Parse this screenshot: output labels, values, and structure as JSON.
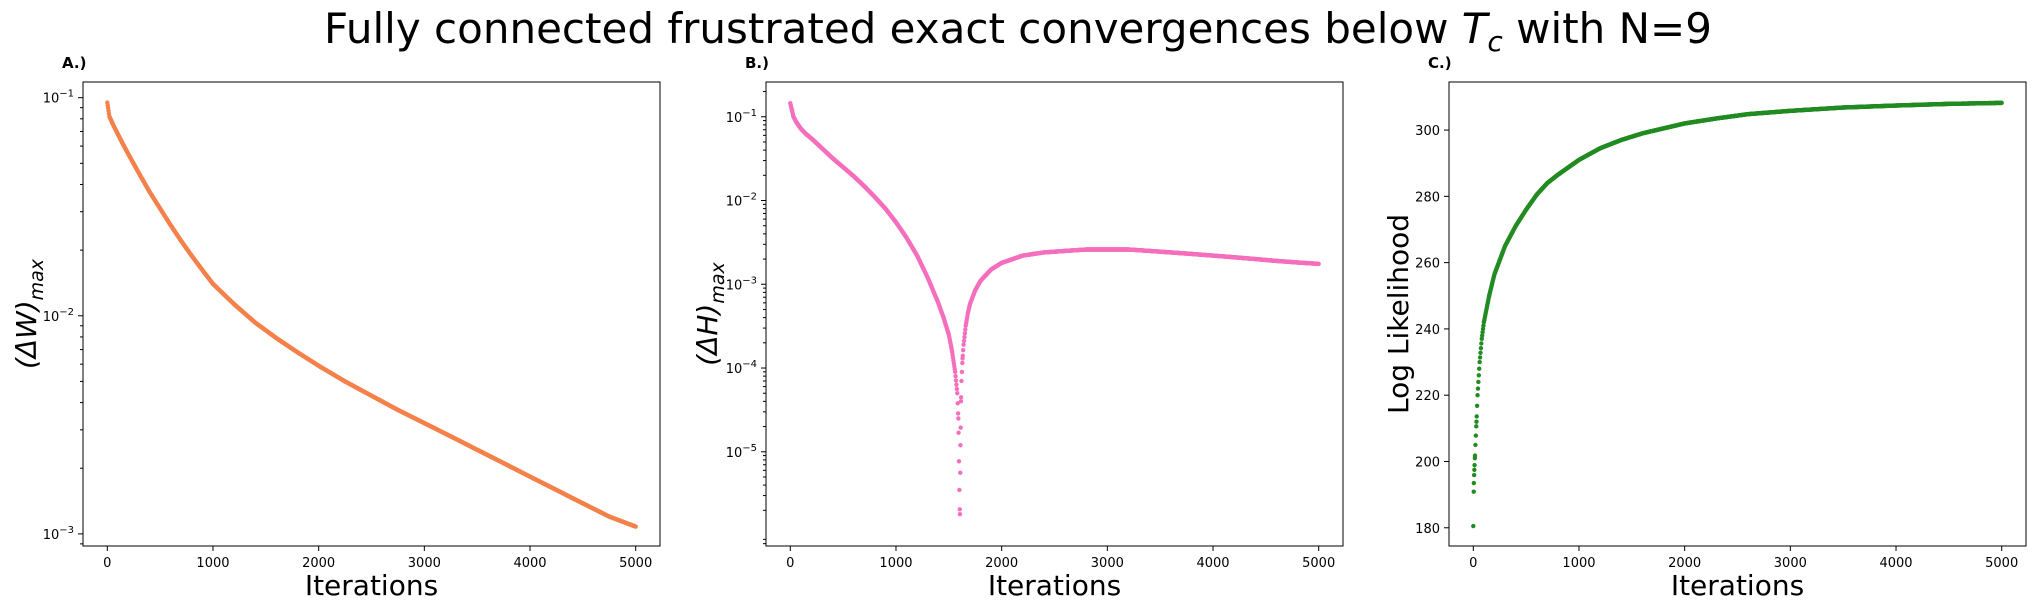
{
  "figure": {
    "title_main": "Fully connected frustrated exact convergences below ",
    "title_symbol": "T",
    "title_subscript": "c",
    "title_suffix": " with N=9"
  },
  "chart_data": [
    {
      "panel": "A.)",
      "type": "scatter",
      "color": "#f4814b",
      "xlabel": "Iterations",
      "ylabel_symbol": "(ΔW)",
      "ylabel_subscript": "max",
      "yscale": "log",
      "xlim": [
        -230,
        5230
      ],
      "ylim": [
        0.00088,
        0.118
      ],
      "xticks": [
        0,
        1000,
        2000,
        3000,
        4000,
        5000
      ],
      "xtick_labels": [
        "0",
        "1000",
        "2000",
        "3000",
        "4000",
        "5000"
      ],
      "yticks": [
        0.001,
        0.01,
        0.1
      ],
      "ytick_labels": [
        {
          "base": "10",
          "exp": "−3"
        },
        {
          "base": "10",
          "exp": "−2"
        },
        {
          "base": "10",
          "exp": "−1"
        }
      ],
      "series": [
        {
          "x": [
            0,
            20,
            50,
            100,
            150,
            200,
            300,
            400,
            500,
            600,
            700,
            800,
            900,
            1000,
            1200,
            1400,
            1600,
            1800,
            2000,
            2250,
            2500,
            2750,
            3000,
            3250,
            3500,
            3750,
            4000,
            4250,
            4500,
            4750,
            5000
          ],
          "y": [
            0.095,
            0.082,
            0.076,
            0.068,
            0.061,
            0.055,
            0.045,
            0.037,
            0.031,
            0.026,
            0.022,
            0.0188,
            0.0162,
            0.014,
            0.0113,
            0.0093,
            0.0079,
            0.0068,
            0.0059,
            0.005,
            0.0043,
            0.0037,
            0.00322,
            0.0028,
            0.00243,
            0.00211,
            0.00183,
            0.00159,
            0.00138,
            0.0012,
            0.00108
          ]
        }
      ]
    },
    {
      "panel": "B.)",
      "type": "scatter",
      "color": "#f56fbd",
      "xlabel": "Iterations",
      "ylabel_symbol": "(ΔH)",
      "ylabel_subscript": "max",
      "yscale": "log",
      "xlim": [
        -230,
        5230
      ],
      "ylim": [
        7.5e-07,
        0.26
      ],
      "xticks": [
        0,
        1000,
        2000,
        3000,
        4000,
        5000
      ],
      "xtick_labels": [
        "0",
        "1000",
        "2000",
        "3000",
        "4000",
        "5000"
      ],
      "yticks": [
        1e-05,
        0.0001,
        0.001,
        0.01,
        0.1
      ],
      "ytick_labels": [
        {
          "base": "10",
          "exp": "−5"
        },
        {
          "base": "10",
          "exp": "−4"
        },
        {
          "base": "10",
          "exp": "−3"
        },
        {
          "base": "10",
          "exp": "−2"
        },
        {
          "base": "10",
          "exp": "−1"
        }
      ],
      "series": [
        {
          "x": [
            0,
            15,
            30,
            60,
            100,
            150,
            200,
            300,
            400,
            500,
            600,
            700,
            800,
            900,
            1000,
            1100,
            1200,
            1300,
            1400,
            1450,
            1500,
            1530,
            1560,
            1580,
            1590,
            1600,
            1605,
            1610,
            1615,
            1620,
            1630,
            1640,
            1660,
            1680,
            1700,
            1750,
            1800,
            1900,
            2000,
            2200,
            2400,
            2600,
            2800,
            3000,
            3200,
            3400,
            3600,
            3800,
            4000,
            4200,
            4400,
            4600,
            4800,
            5000
          ],
          "y": [
            0.145,
            0.12,
            0.1,
            0.085,
            0.072,
            0.062,
            0.055,
            0.042,
            0.032,
            0.025,
            0.0195,
            0.0148,
            0.011,
            0.008,
            0.0055,
            0.0036,
            0.0022,
            0.0012,
            0.0006,
            0.0004,
            0.00025,
            0.00016,
            9e-05,
            5e-05,
            2.5e-05,
            3.5e-06,
            1.8e-06,
            1.2e-05,
            4e-05,
            7e-05,
            0.00013,
            0.00019,
            0.00032,
            0.00045,
            0.00058,
            0.00085,
            0.0011,
            0.0015,
            0.0018,
            0.0022,
            0.0024,
            0.0025,
            0.0026,
            0.0026,
            0.0026,
            0.0025,
            0.0024,
            0.0023,
            0.0022,
            0.0021,
            0.002,
            0.0019,
            0.00182,
            0.00175
          ]
        }
      ]
    },
    {
      "panel": "C.)",
      "type": "scatter",
      "color": "#228b22",
      "xlabel": "Iterations",
      "ylabel": "Log Likelihood",
      "yscale": "linear",
      "xlim": [
        -230,
        5230
      ],
      "ylim": [
        174.5,
        314.5
      ],
      "xticks": [
        0,
        1000,
        2000,
        3000,
        4000,
        5000
      ],
      "xtick_labels": [
        "0",
        "1000",
        "2000",
        "3000",
        "4000",
        "5000"
      ],
      "yticks": [
        180,
        200,
        220,
        240,
        260,
        280,
        300
      ],
      "ytick_labels": [
        "180",
        "200",
        "220",
        "240",
        "260",
        "280",
        "300"
      ],
      "series": [
        {
          "x": [
            0,
            5,
            10,
            15,
            20,
            30,
            40,
            60,
            80,
            100,
            150,
            200,
            300,
            400,
            500,
            600,
            700,
            800,
            1000,
            1200,
            1400,
            1600,
            1800,
            2000,
            2300,
            2600,
            3000,
            3500,
            4000,
            4500,
            5000
          ],
          "y": [
            180.5,
            193.5,
            197.5,
            201,
            205,
            212,
            220,
            230,
            237,
            242,
            250,
            256.5,
            265,
            271,
            276,
            280.5,
            284,
            286.5,
            291,
            294.5,
            297,
            299,
            300.5,
            302,
            303.5,
            304.8,
            305.8,
            306.8,
            307.4,
            307.9,
            308.2
          ]
        }
      ]
    }
  ]
}
